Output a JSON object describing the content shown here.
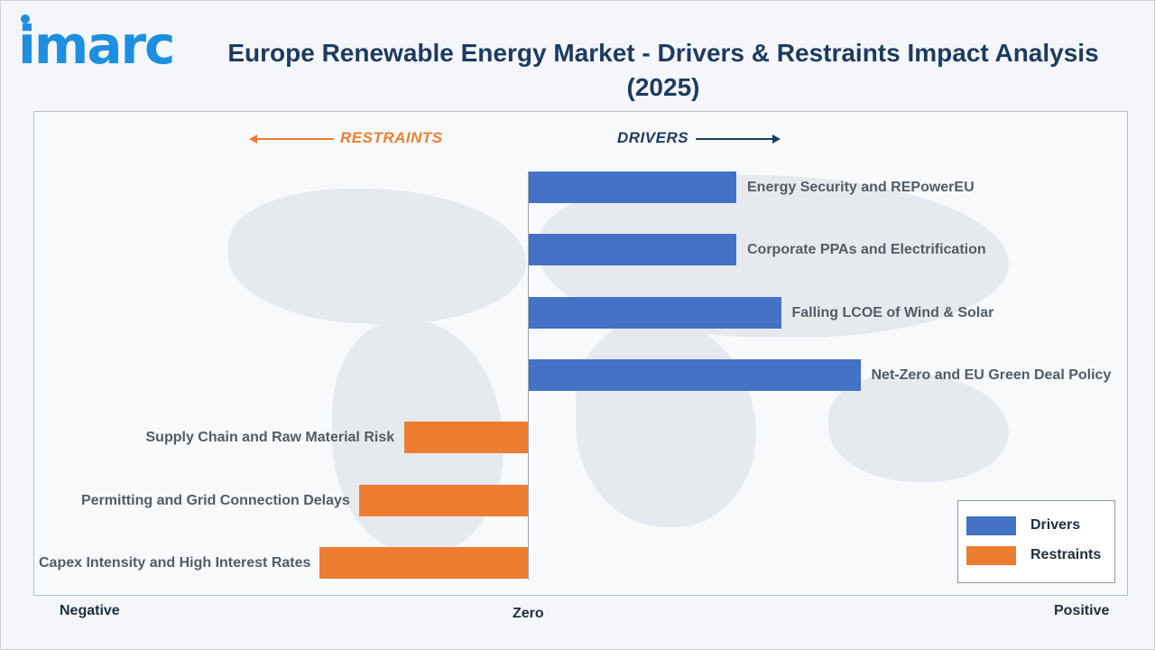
{
  "brand": {
    "logo_text": "imarc"
  },
  "title": "Europe Renewable Energy Market - Drivers & Restraints Impact Analysis (2025)",
  "direction_labels": {
    "restraints": "RESTRAINTS",
    "drivers": "DRIVERS"
  },
  "axis_words": {
    "negative": "Negative",
    "zero": "Zero",
    "positive": "Positive"
  },
  "legend": {
    "drivers": "Drivers",
    "restraints": "Restraints"
  },
  "colors": {
    "drivers": "#4472c4",
    "restraints": "#ed7d31",
    "title": "#1f3a5f",
    "logo": "#1e8fe0"
  },
  "chart_data": {
    "type": "bar",
    "orientation": "horizontal",
    "title": "Europe Renewable Energy Market - Drivers & Restraints Impact Analysis (2025)",
    "xlim": [
      -10,
      10
    ],
    "legend_position": "bottom-right",
    "series": [
      {
        "name": "Drivers",
        "color": "#4472c4"
      },
      {
        "name": "Restraints",
        "color": "#ed7d31"
      }
    ],
    "bars": [
      {
        "label": "Energy Security and REPowerEU",
        "value": 4.2,
        "series": "Drivers"
      },
      {
        "label": "Corporate PPAs and Electrification",
        "value": 4.2,
        "series": "Drivers"
      },
      {
        "label": "Falling LCOE of Wind & Solar",
        "value": 5.1,
        "series": "Drivers"
      },
      {
        "label": "Net-Zero and EU Green Deal Policy",
        "value": 6.7,
        "series": "Drivers"
      },
      {
        "label": "Supply Chain and Raw Material Risk",
        "value": -2.5,
        "series": "Restraints"
      },
      {
        "label": "Permitting and Grid Connection Delays",
        "value": -3.4,
        "series": "Restraints"
      },
      {
        "label": "Capex Intensity and High Interest Rates",
        "value": -4.2,
        "series": "Restraints"
      }
    ]
  }
}
